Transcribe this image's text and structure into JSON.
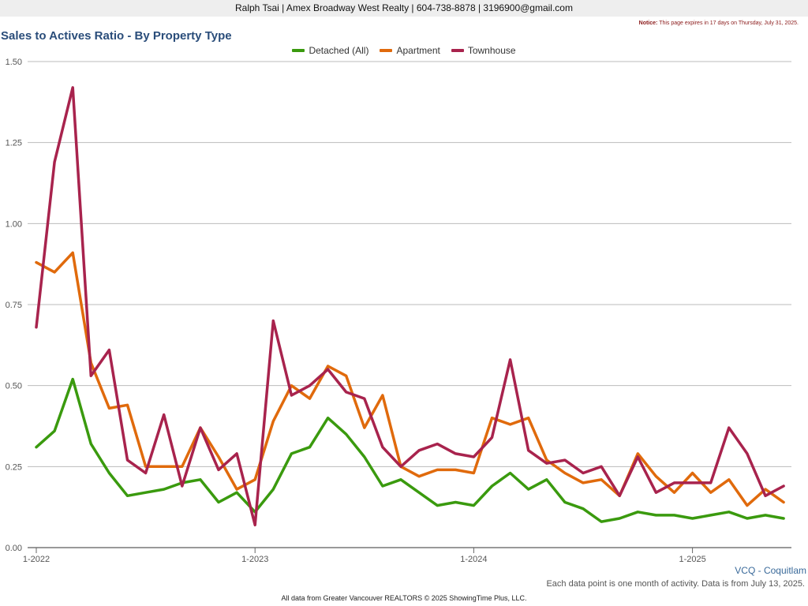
{
  "header": {
    "contact": "Ralph Tsai | Amex Broadway West Realty | 604-738-8878 | 3196900@gmail.com",
    "notice_label": "Notice:",
    "notice_text": "This page expires in 17 days on Thursday, July 31, 2025."
  },
  "region": "VCQ - Coquitlam",
  "footnote": "Each data point is one month of activity. Data is from July 13, 2025.",
  "copyright": "All data from Greater Vancouver REALTORS © 2025 ShowingTime Plus, LLC.",
  "chart_data": {
    "type": "line",
    "title": "Sales to Actives Ratio - By Property Type",
    "xlabel": "",
    "ylabel": "",
    "ylim": [
      0,
      1.5
    ],
    "yticks": [
      "0.00",
      "0.25",
      "0.50",
      "0.75",
      "1.00",
      "1.25",
      "1.50"
    ],
    "xticks": [
      "1-2022",
      "1-2023",
      "1-2024",
      "1-2025"
    ],
    "xtick_indices": [
      0,
      12,
      24,
      36
    ],
    "grid": true,
    "legend_position": "top-center",
    "x": [
      "2022-01",
      "2022-02",
      "2022-03",
      "2022-04",
      "2022-05",
      "2022-06",
      "2022-07",
      "2022-08",
      "2022-09",
      "2022-10",
      "2022-11",
      "2022-12",
      "2023-01",
      "2023-02",
      "2023-03",
      "2023-04",
      "2023-05",
      "2023-06",
      "2023-07",
      "2023-08",
      "2023-09",
      "2023-10",
      "2023-11",
      "2023-12",
      "2024-01",
      "2024-02",
      "2024-03",
      "2024-04",
      "2024-05",
      "2024-06",
      "2024-07",
      "2024-08",
      "2024-09",
      "2024-10",
      "2024-11",
      "2024-12",
      "2025-01",
      "2025-02",
      "2025-03",
      "2025-04",
      "2025-05",
      "2025-06"
    ],
    "series": [
      {
        "name": "Detached (All)",
        "color": "#3a9a0e",
        "values": [
          0.31,
          0.36,
          0.52,
          0.32,
          0.23,
          0.16,
          0.17,
          0.18,
          0.2,
          0.21,
          0.14,
          0.17,
          0.11,
          0.18,
          0.29,
          0.31,
          0.4,
          0.35,
          0.28,
          0.19,
          0.21,
          0.17,
          0.13,
          0.14,
          0.13,
          0.19,
          0.23,
          0.18,
          0.21,
          0.14,
          0.12,
          0.08,
          0.09,
          0.11,
          0.1,
          0.1,
          0.09,
          0.1,
          0.11,
          0.09,
          0.1,
          0.09
        ]
      },
      {
        "name": "Apartment",
        "color": "#e06a0c",
        "values": [
          0.88,
          0.85,
          0.91,
          0.57,
          0.43,
          0.44,
          0.25,
          0.25,
          0.25,
          0.37,
          0.28,
          0.18,
          0.21,
          0.39,
          0.5,
          0.46,
          0.56,
          0.53,
          0.37,
          0.47,
          0.25,
          0.22,
          0.24,
          0.24,
          0.23,
          0.4,
          0.38,
          0.4,
          0.27,
          0.23,
          0.2,
          0.21,
          0.16,
          0.29,
          0.22,
          0.17,
          0.23,
          0.17,
          0.21,
          0.13,
          0.18,
          0.14
        ]
      },
      {
        "name": "Townhouse",
        "color": "#a8234d",
        "values": [
          0.68,
          1.19,
          1.42,
          0.53,
          0.61,
          0.27,
          0.23,
          0.41,
          0.19,
          0.37,
          0.24,
          0.29,
          0.07,
          0.7,
          0.47,
          0.5,
          0.55,
          0.48,
          0.46,
          0.31,
          0.25,
          0.3,
          0.32,
          0.29,
          0.28,
          0.34,
          0.58,
          0.3,
          0.26,
          0.27,
          0.23,
          0.25,
          0.16,
          0.28,
          0.17,
          0.2,
          0.2,
          0.2,
          0.37,
          0.29,
          0.16,
          0.19
        ]
      }
    ]
  }
}
